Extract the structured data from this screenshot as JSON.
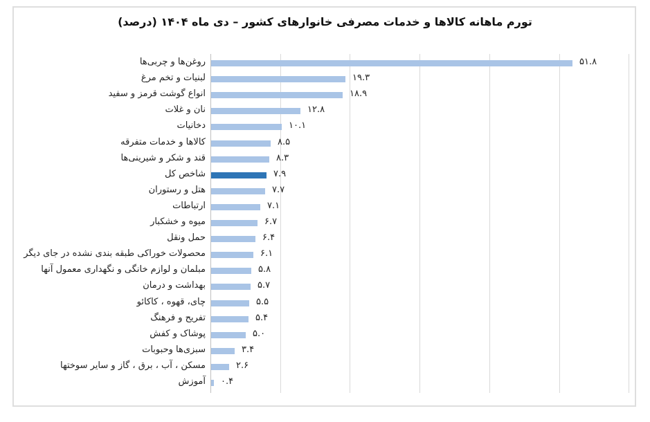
{
  "chart_data": {
    "type": "bar",
    "orientation": "horizontal",
    "title": "تورم ماهانه کالاها و خدمات مصرفی خانوارهای کشور – دی ماه ۱۴۰۴ (درصد)",
    "xlabel": "",
    "ylabel": "",
    "xlim": [
      0,
      60
    ],
    "grid": true,
    "gridline_step": 10,
    "legend": null,
    "bar_color": "#A9C4E6",
    "highlight_color": "#2E75B6",
    "highlight_category": "شاخص کل",
    "categories": [
      "روغن‌ها و چربی‌ها",
      "لبنیات و تخم مرغ",
      "انواع گوشت قرمز و سفید",
      "نان و غلات",
      "دخانیات",
      "کالاها و خدمات متفرقه",
      "قند و شکر و شیرینی‌ها",
      "شاخص کل",
      "هتل و رستوران",
      "ارتباطات",
      "میوه و خشکبار",
      "حمل ونقل",
      "محصولات خوراکی طبقه بندی نشده در جای دیگر",
      "مبلمان و لوازم خانگی و نگهداری معمول آنها",
      "بهداشت و درمان",
      "چای، قهوه ، کاکائو",
      "تفریح و فرهنگ",
      "پوشاک و کفش",
      "سبزی‌ها وحبوبات",
      "مسکن ، آب ، برق ، گاز و سایر سوختها",
      "آموزش"
    ],
    "values": [
      51.8,
      19.3,
      18.9,
      12.8,
      10.1,
      8.5,
      8.3,
      7.9,
      7.7,
      7.1,
      6.7,
      6.4,
      6.1,
      5.8,
      5.7,
      5.5,
      5.4,
      5.0,
      3.4,
      2.6,
      0.4
    ],
    "value_labels": [
      "۵۱.۸",
      "۱۹.۳",
      "۱۸.۹",
      "۱۲.۸",
      "۱۰.۱",
      "۸.۵",
      "۸.۳",
      "۷.۹",
      "۷.۷",
      "۷.۱",
      "۶.۷",
      "۶.۴",
      "۶.۱",
      "۵.۸",
      "۵.۷",
      "۵.۵",
      "۵.۴",
      "۵.۰",
      "۳.۴",
      "۲.۶",
      "۰.۴"
    ]
  }
}
